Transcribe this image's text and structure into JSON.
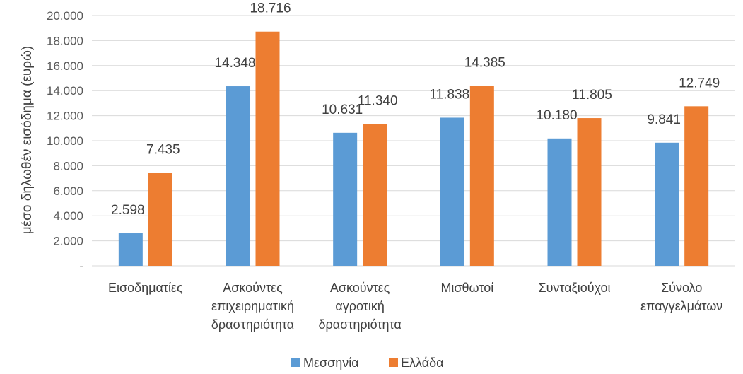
{
  "chart_data": {
    "type": "bar",
    "title": "",
    "xlabel": "",
    "ylabel": "μέσο δηλωθέν εισόδημα (ευρώ)",
    "ylim": [
      0,
      20000
    ],
    "yticks": [
      0,
      2000,
      4000,
      6000,
      8000,
      10000,
      12000,
      14000,
      16000,
      18000,
      20000
    ],
    "ytick_labels": [
      "-",
      "2.000",
      "4.000",
      "6.000",
      "8.000",
      "10.000",
      "12.000",
      "14.000",
      "16.000",
      "18.000",
      "20.000"
    ],
    "grid": true,
    "legend_position": "bottom",
    "categories": [
      [
        "Εισοδηματίες"
      ],
      [
        "Ασκούντες",
        "επιχειρηματική",
        "δραστηριότητα"
      ],
      [
        "Ασκούντες",
        "αγροτική",
        "δραστηριότητα"
      ],
      [
        "Μισθωτοί"
      ],
      [
        "Συνταξιούχοι"
      ],
      [
        "Σύνολο",
        "επαγγελμάτων"
      ]
    ],
    "series": [
      {
        "name": "Μεσσηνία",
        "color": "#5B9BD5",
        "values": [
          2598,
          14348,
          10631,
          11838,
          10180,
          9841
        ],
        "labels": [
          "2.598",
          "14.348",
          "10.631",
          "11.838",
          "10.180",
          "9.841"
        ]
      },
      {
        "name": "Ελλάδα",
        "color": "#ED7D31",
        "values": [
          7435,
          18716,
          11340,
          14385,
          11805,
          12749
        ],
        "labels": [
          "7.435",
          "18.716",
          "11.340",
          "14.385",
          "11.805",
          "12.749"
        ]
      }
    ]
  }
}
